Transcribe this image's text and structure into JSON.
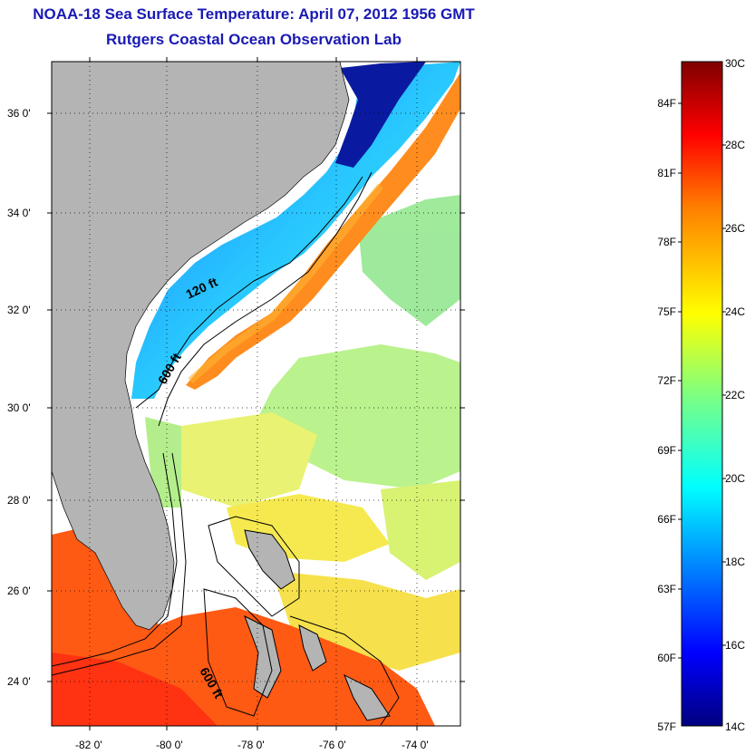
{
  "title": {
    "line1": "NOAA-18 Sea Surface Temperature:  April 07, 2012 1956 GMT",
    "line2": "Rutgers Coastal Ocean Observation Lab"
  },
  "map": {
    "lat_labels": [
      "36 0'",
      "34 0'",
      "32 0'",
      "30 0'",
      "28 0'",
      "26 0'",
      "24 0'"
    ],
    "lon_labels": [
      "-82 0'",
      "-80 0'",
      "-78 0'",
      "-76 0'",
      "-74 0'"
    ],
    "contour_labels": [
      "120 ft",
      "600 ft",
      "600 ft"
    ],
    "land_color": "#b4b4b4",
    "cloud_color": "#ffffff"
  },
  "colorbar": {
    "celsius_labels": [
      "30C",
      "28C",
      "26C",
      "24C",
      "22C",
      "20C",
      "18C",
      "16C",
      "14C"
    ],
    "fahrenheit_labels": [
      "84F",
      "81F",
      "78F",
      "75F",
      "72F",
      "69F",
      "66F",
      "63F",
      "60F",
      "57F"
    ],
    "min_c": 14,
    "max_c": 30
  }
}
